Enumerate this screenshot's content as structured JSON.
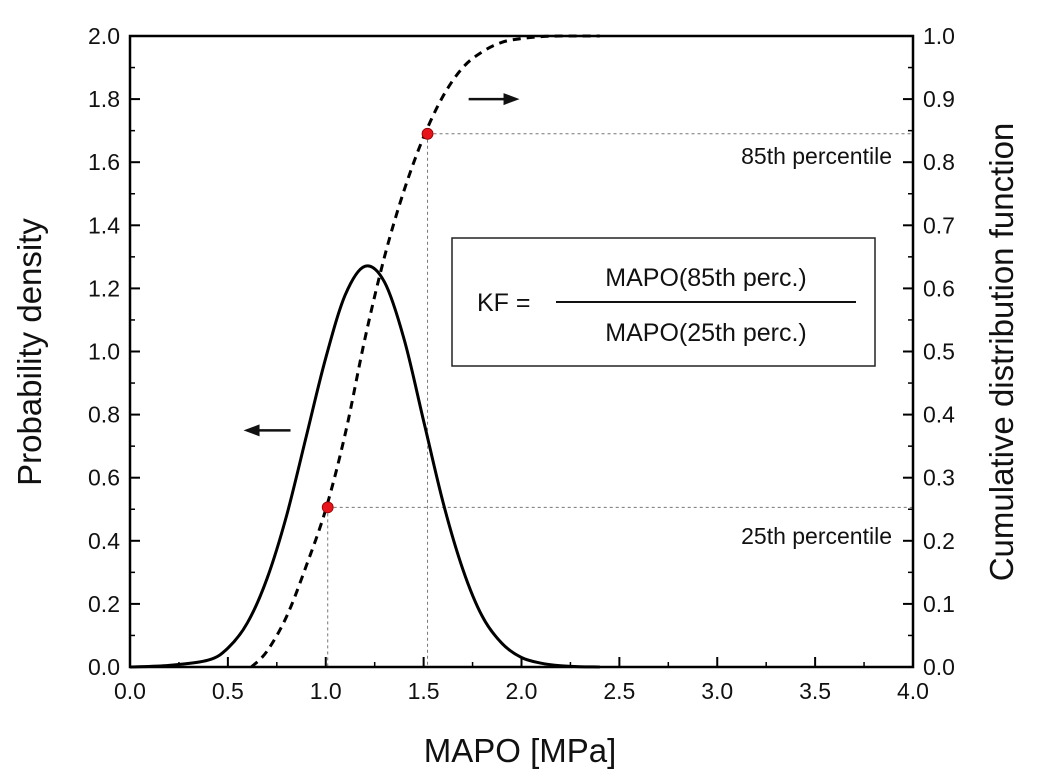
{
  "chart_data": {
    "type": "line",
    "xlabel": "MAPO [MPa]",
    "ylabel_left": "Probability density",
    "ylabel_right": "Cumulative distribution function",
    "xlim": [
      0.0,
      4.0
    ],
    "ylim_left": [
      0.0,
      2.0
    ],
    "ylim_right": [
      0.0,
      1.0
    ],
    "x_ticks": [
      "0.0",
      "0.5",
      "1.0",
      "1.5",
      "2.0",
      "2.5",
      "3.0",
      "3.5",
      "4.0"
    ],
    "y_left_ticks": [
      "0.0",
      "0.2",
      "0.4",
      "0.6",
      "0.8",
      "1.0",
      "1.2",
      "1.4",
      "1.6",
      "1.8",
      "2.0"
    ],
    "y_right_ticks": [
      "0.0",
      "0.1",
      "0.2",
      "0.3",
      "0.4",
      "0.5",
      "0.6",
      "0.7",
      "0.8",
      "0.9",
      "1.0"
    ],
    "grid": false,
    "series": [
      {
        "style": "solid",
        "axis": "left",
        "color": "#000000",
        "x": [
          0.0,
          0.2,
          0.4,
          0.5,
          0.6,
          0.7,
          0.8,
          0.9,
          1.0,
          1.1,
          1.2,
          1.3,
          1.4,
          1.5,
          1.6,
          1.7,
          1.8,
          1.9,
          2.0,
          2.1,
          2.2,
          2.3,
          2.4
        ],
        "y": [
          0.0,
          0.005,
          0.022,
          0.06,
          0.14,
          0.28,
          0.48,
          0.73,
          0.98,
          1.18,
          1.27,
          1.22,
          1.04,
          0.78,
          0.52,
          0.31,
          0.16,
          0.075,
          0.03,
          0.012,
          0.004,
          0.001,
          0.0
        ]
      },
      {
        "style": "dashed",
        "axis": "right",
        "color": "#000000",
        "x": [
          0.62,
          0.7,
          0.8,
          0.9,
          1.0,
          1.1,
          1.2,
          1.3,
          1.4,
          1.5,
          1.6,
          1.7,
          1.8,
          1.9,
          2.0,
          2.1,
          2.2,
          2.3,
          2.4
        ],
        "y": [
          0.0,
          0.025,
          0.08,
          0.16,
          0.25,
          0.37,
          0.52,
          0.65,
          0.755,
          0.84,
          0.905,
          0.95,
          0.975,
          0.99,
          0.996,
          0.999,
          1.0,
          1.0,
          1.0
        ]
      }
    ],
    "markers": [
      {
        "x": 1.01,
        "y": 0.253,
        "axis": "right",
        "color": "#e8141b",
        "label": "25th percentile"
      },
      {
        "x": 1.52,
        "y": 0.845,
        "axis": "right",
        "color": "#e8141b",
        "label": "85th percentile"
      }
    ],
    "arrows": [
      {
        "direction": "left",
        "axis": "left",
        "x_from": 0.82,
        "x_to": 0.58,
        "y": 0.75
      },
      {
        "direction": "right",
        "axis": "right",
        "x_from": 1.73,
        "x_to": 1.99,
        "y": 0.9
      }
    ],
    "formula": {
      "lhs": "KF =",
      "numerator": "MAPO(85th perc.)",
      "denominator": "MAPO(25th perc.)"
    }
  }
}
